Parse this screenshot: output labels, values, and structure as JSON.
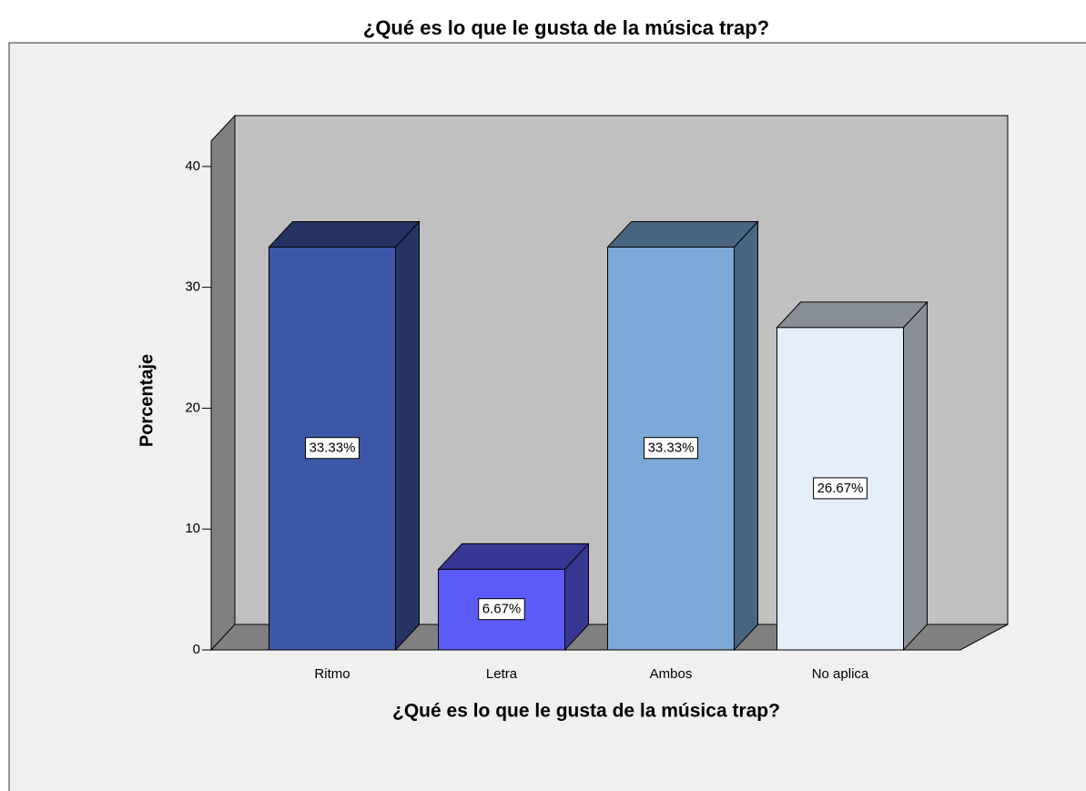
{
  "chart_data": {
    "type": "bar3d",
    "title": "¿Qué es lo que le gusta de la música trap?",
    "x_label": "¿Qué es lo que le gusta de la música trap?",
    "y_label": "Porcentaje",
    "categories": [
      "Ritmo",
      "Letra",
      "Ambos",
      "No aplica"
    ],
    "values": [
      33.33,
      6.67,
      33.33,
      26.67
    ],
    "value_labels": [
      "33.33%",
      "6.67%",
      "33.33%",
      "26.67%"
    ],
    "colors": [
      "#3d57a8",
      "#5b5cf7",
      "#7ba8d6",
      "#e4eefa"
    ],
    "ylim": [
      0,
      42.1
    ],
    "yticks": [
      0,
      10,
      20,
      30,
      40
    ]
  }
}
